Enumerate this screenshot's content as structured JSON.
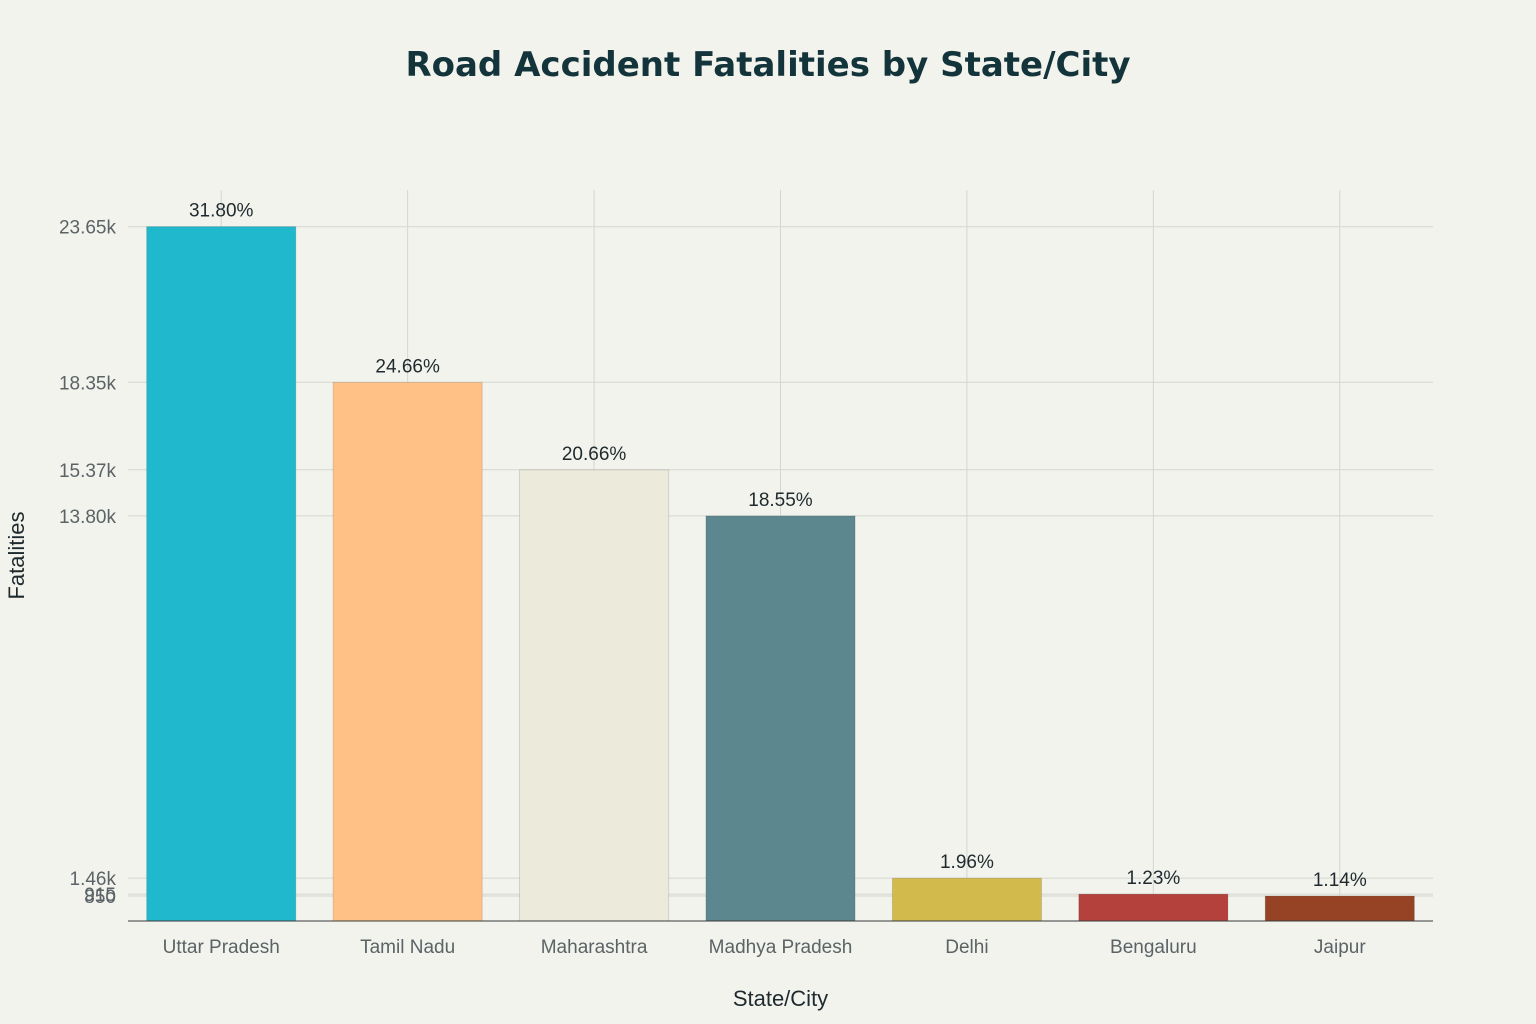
{
  "chart_data": {
    "type": "bar",
    "title": "Road Accident Fatalities by State/City",
    "xlabel": "State/City",
    "ylabel": "Fatalities",
    "categories": [
      "Uttar Pradesh",
      "Tamil Nadu",
      "Maharashtra",
      "Madhya Pradesh",
      "Delhi",
      "Bengaluru",
      "Jaipur"
    ],
    "values": [
      23652,
      18347,
      15366,
      13798,
      1457,
      915,
      850
    ],
    "data_labels": [
      "31.80%",
      "24.66%",
      "20.66%",
      "18.55%",
      "1.96%",
      "1.23%",
      "1.14%"
    ],
    "colors": [
      "#1fb8cd",
      "#ffc185",
      "#eceadb",
      "#5d878f",
      "#d2ba4c",
      "#b4413c",
      "#964325"
    ],
    "yticks": [
      850,
      915,
      1460,
      13800,
      15370,
      18350,
      23650
    ],
    "ytick_labels": [
      "850",
      "915",
      "1.46k",
      "13.80k",
      "15.37k",
      "18.35k",
      "23.65k"
    ],
    "ylim": [
      0,
      24900
    ],
    "grid": true,
    "legend": "none"
  },
  "colors": {
    "background": "#f3f3ee",
    "title": "#13343b"
  }
}
